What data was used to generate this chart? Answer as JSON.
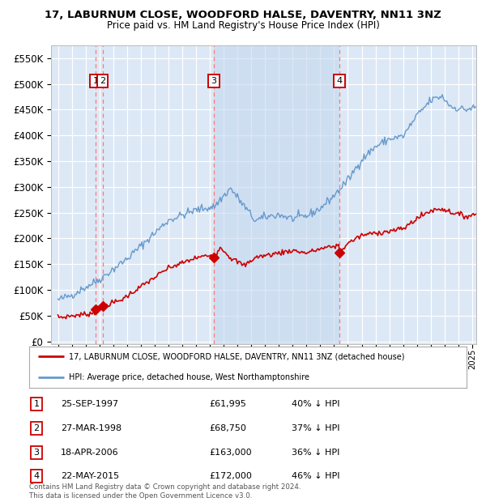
{
  "title": "17, LABURNUM CLOSE, WOODFORD HALSE, DAVENTRY, NN11 3NZ",
  "subtitle": "Price paid vs. HM Land Registry's House Price Index (HPI)",
  "ylabel_ticks": [
    "£0",
    "£50K",
    "£100K",
    "£150K",
    "£200K",
    "£250K",
    "£300K",
    "£350K",
    "£400K",
    "£450K",
    "£500K",
    "£550K"
  ],
  "ytick_values": [
    0,
    50000,
    100000,
    150000,
    200000,
    250000,
    300000,
    350000,
    400000,
    450000,
    500000,
    550000
  ],
  "xlim": [
    1994.5,
    2025.3
  ],
  "ylim": [
    -5000,
    575000
  ],
  "plot_bg_color": "#dce8f5",
  "grid_color": "#ffffff",
  "red_line_color": "#cc0000",
  "blue_line_color": "#6699cc",
  "dashed_color": "#ff6666",
  "sale_years": [
    1997.73,
    1998.23,
    2006.29,
    2015.38
  ],
  "sale_prices": [
    61995,
    68750,
    163000,
    172000
  ],
  "sale_labels": [
    "1",
    "2",
    "3",
    "4"
  ],
  "shaded_region": [
    2006.29,
    2015.38
  ],
  "legend_red_label": "17, LABURNUM CLOSE, WOODFORD HALSE, DAVENTRY, NN11 3NZ (detached house)",
  "legend_blue_label": "HPI: Average price, detached house, West Northamptonshire",
  "table_rows": [
    {
      "num": "1",
      "date": "25-SEP-1997",
      "price": "£61,995",
      "hpi": "40% ↓ HPI"
    },
    {
      "num": "2",
      "date": "27-MAR-1998",
      "price": "£68,750",
      "hpi": "37% ↓ HPI"
    },
    {
      "num": "3",
      "date": "18-APR-2006",
      "price": "£163,000",
      "hpi": "36% ↓ HPI"
    },
    {
      "num": "4",
      "date": "22-MAY-2015",
      "price": "£172,000",
      "hpi": "46% ↓ HPI"
    }
  ],
  "footer": "Contains HM Land Registry data © Crown copyright and database right 2024.\nThis data is licensed under the Open Government Licence v3.0."
}
